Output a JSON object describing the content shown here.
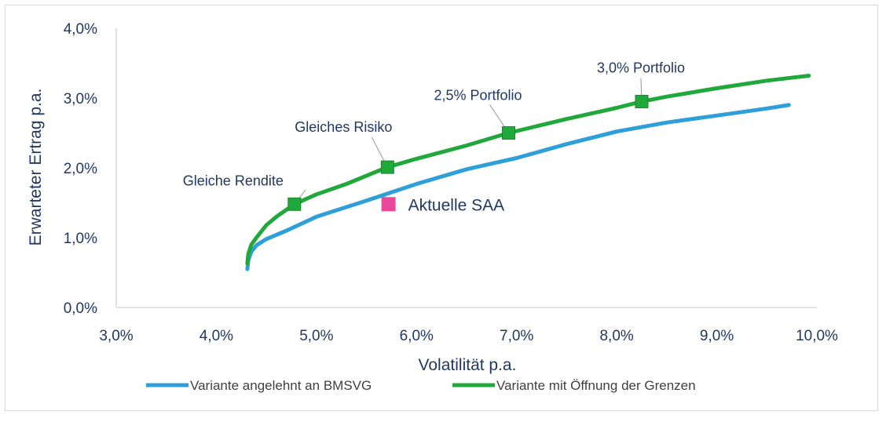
{
  "chart_data": {
    "type": "line",
    "xlabel": "Volatilität p.a.",
    "ylabel": "Erwarteter Ertrag p.a.",
    "xlim": [
      3.0,
      10.0
    ],
    "ylim": [
      0.0,
      4.0
    ],
    "x_ticks": [
      "3,0%",
      "4,0%",
      "5,0%",
      "6,0%",
      "7,0%",
      "8,0%",
      "9,0%",
      "10,0%"
    ],
    "y_ticks": [
      "0,0%",
      "1,0%",
      "2,0%",
      "3,0%",
      "4,0%"
    ],
    "grid": false,
    "legend_position": "bottom",
    "series": [
      {
        "name": "Variante angelehnt an BMSVG",
        "color": "#2e9fd9",
        "x": [
          4.31,
          4.32,
          4.35,
          4.4,
          4.5,
          4.7,
          5.0,
          5.5,
          6.0,
          6.5,
          7.0,
          7.5,
          8.0,
          8.5,
          9.0,
          9.5,
          9.72
        ],
        "y": [
          0.55,
          0.68,
          0.8,
          0.89,
          0.98,
          1.1,
          1.3,
          1.53,
          1.77,
          1.98,
          2.14,
          2.34,
          2.52,
          2.65,
          2.75,
          2.85,
          2.9
        ]
      },
      {
        "name": "Variante mit Öffnung der Grenzen",
        "color": "#21a83a",
        "x": [
          4.31,
          4.32,
          4.35,
          4.4,
          4.5,
          4.6,
          4.78,
          5.0,
          5.3,
          5.71,
          6.0,
          6.5,
          6.92,
          7.5,
          8.0,
          8.25,
          8.5,
          9.0,
          9.5,
          9.92
        ],
        "y": [
          0.63,
          0.77,
          0.9,
          1.0,
          1.18,
          1.3,
          1.48,
          1.62,
          1.77,
          2.01,
          2.13,
          2.32,
          2.5,
          2.7,
          2.86,
          2.95,
          3.02,
          3.14,
          3.25,
          3.32
        ]
      }
    ],
    "markers": [
      {
        "label": "Gleiche Rendite",
        "x": 4.78,
        "y": 1.48,
        "color": "#21a83a"
      },
      {
        "label": "Gleiches Risiko",
        "x": 5.71,
        "y": 2.01,
        "color": "#21a83a"
      },
      {
        "label": "2,5% Portfolio",
        "x": 6.92,
        "y": 2.5,
        "color": "#21a83a"
      },
      {
        "label": "3,0% Portfolio",
        "x": 8.25,
        "y": 2.95,
        "color": "#21a83a"
      }
    ],
    "point": {
      "label": "Aktuelle SAA",
      "x": 5.72,
      "y": 1.48,
      "color": "#e8479a"
    }
  }
}
